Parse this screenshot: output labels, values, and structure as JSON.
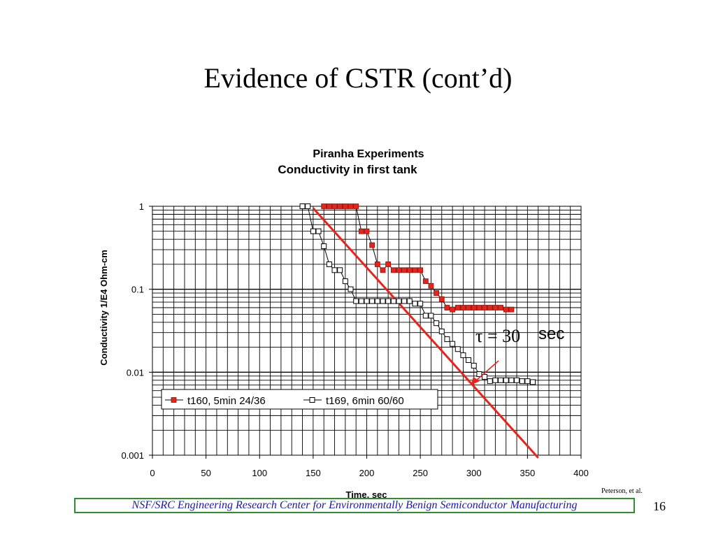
{
  "slide": {
    "title": "Evidence of CSTR (cont’d)",
    "credit": "Peterson, et al.",
    "footer": "NSF/SRC Engineering Research Center for Environmentally Benign Semiconductor Manufacturing",
    "page_number": "16"
  },
  "annotation": {
    "tau_symbol": "τ = 30",
    "unit": "sec",
    "arrow_color": "#e8231a"
  },
  "chart_data": {
    "type": "scatter",
    "title": "Piranha Experiments",
    "subtitle": "Conductivity in first tank",
    "xlabel": "Time, sec",
    "ylabel": "Conductivity 1/E4 Ohm-cm",
    "xlim": [
      0,
      400
    ],
    "ylim": [
      0.001,
      1
    ],
    "yscale": "log",
    "grid": true,
    "legend_position": "bottom-left",
    "x_ticks": [
      "0",
      "50",
      "100",
      "150",
      "200",
      "250",
      "300",
      "350",
      "400"
    ],
    "y_ticks": [
      "0.001",
      "0.01",
      "0.1",
      "1"
    ],
    "series": [
      {
        "name": "t160, 5min 24/36",
        "color": "#e8231a",
        "marker": "filled-square",
        "x": [
          160,
          165,
          170,
          175,
          180,
          185,
          190,
          195,
          200,
          205,
          210,
          215,
          220,
          225,
          230,
          235,
          240,
          245,
          250,
          255,
          260,
          265,
          270,
          275,
          280,
          285,
          290,
          295,
          300,
          305,
          310,
          315,
          320,
          325,
          330,
          335
        ],
        "y": [
          1,
          1,
          1,
          1,
          1,
          1,
          1,
          0.5,
          0.5,
          0.34,
          0.2,
          0.17,
          0.2,
          0.17,
          0.17,
          0.17,
          0.17,
          0.17,
          0.17,
          0.125,
          0.11,
          0.09,
          0.076,
          0.06,
          0.057,
          0.06,
          0.06,
          0.06,
          0.06,
          0.06,
          0.06,
          0.06,
          0.06,
          0.06,
          0.057,
          0.057
        ]
      },
      {
        "name": "t169, 6min 60/60",
        "color": "#000000",
        "marker": "open-square",
        "x": [
          140,
          145,
          150,
          155,
          160,
          165,
          170,
          175,
          180,
          185,
          190,
          195,
          200,
          205,
          210,
          215,
          220,
          225,
          230,
          235,
          240,
          245,
          250,
          255,
          260,
          265,
          270,
          275,
          280,
          285,
          290,
          295,
          300,
          305,
          310,
          315,
          320,
          325,
          330,
          335,
          340,
          345,
          350,
          355
        ],
        "y": [
          1,
          1,
          0.5,
          0.5,
          0.33,
          0.2,
          0.17,
          0.17,
          0.125,
          0.1,
          0.072,
          0.072,
          0.072,
          0.072,
          0.072,
          0.072,
          0.072,
          0.072,
          0.072,
          0.072,
          0.072,
          0.067,
          0.067,
          0.048,
          0.048,
          0.039,
          0.031,
          0.025,
          0.022,
          0.019,
          0.016,
          0.014,
          0.012,
          0.0095,
          0.0088,
          0.0078,
          0.008,
          0.008,
          0.008,
          0.008,
          0.008,
          0.0078,
          0.0078,
          0.0076
        ]
      }
    ],
    "fit_line": {
      "color": "#e8231a",
      "x": [
        150,
        360
      ],
      "y": [
        0.95,
        0.00093
      ]
    }
  }
}
